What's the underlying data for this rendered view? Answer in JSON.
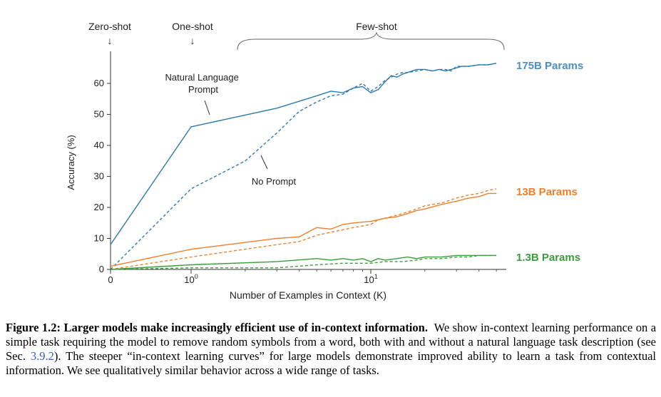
{
  "chart_data": {
    "type": "line",
    "xlabel": "Number of Examples in Context (K)",
    "ylabel": "Accuracy (%)",
    "xscale": "log (with 0 shown at left)",
    "xlim": [
      0,
      50
    ],
    "ylim": [
      0,
      70
    ],
    "yticks": [
      "0",
      "10",
      "20",
      "30",
      "40",
      "50",
      "60"
    ],
    "xticks": [
      {
        "value": 0,
        "base": "0",
        "exp": ""
      },
      {
        "value": 1,
        "base": "10",
        "exp": "0"
      },
      {
        "value": 10,
        "base": "10",
        "exp": "1"
      }
    ],
    "grid": false,
    "regions": [
      {
        "label": "Zero-shot",
        "arrow": "↓"
      },
      {
        "label": "One-shot",
        "arrow": "↓"
      },
      {
        "label": "Few-shot"
      }
    ],
    "annotations": [
      {
        "text": "Natural Language\nPrompt"
      },
      {
        "text": "No Prompt"
      }
    ],
    "series": [
      {
        "name": "175B Params",
        "style": "solid",
        "color": "#2d7bb0",
        "x": [
          0,
          1,
          3,
          5,
          6,
          7,
          8,
          9,
          10,
          11,
          12,
          13,
          14,
          15,
          16,
          18,
          20,
          22,
          24,
          26,
          28,
          30,
          32,
          35,
          40,
          45,
          50
        ],
        "y": [
          8,
          46,
          52,
          56,
          57.5,
          57,
          58.5,
          59,
          57,
          58,
          60.5,
          62.5,
          62,
          63,
          63.5,
          64.5,
          64.5,
          64,
          64.5,
          64,
          64.5,
          65,
          65.5,
          65.5,
          66,
          66,
          66.5
        ]
      },
      {
        "name": "175B Params",
        "style": "dashed",
        "color": "#2d7bb0",
        "x": [
          0,
          1,
          2,
          3,
          4,
          5,
          6,
          7,
          8,
          9,
          10,
          11,
          12,
          13,
          14,
          15,
          16,
          18,
          20,
          22,
          24,
          26,
          28,
          30,
          32,
          35,
          40,
          45,
          50
        ],
        "y": [
          0,
          26,
          35,
          44,
          51,
          54,
          56,
          56.5,
          58.5,
          60,
          57.5,
          59,
          61,
          62,
          63,
          63.5,
          63.5,
          64,
          64.5,
          64,
          64.5,
          64.5,
          64,
          65.5,
          65.5,
          65.5,
          66,
          66,
          66.5
        ]
      },
      {
        "name": "13B Params",
        "style": "solid",
        "color": "#f07f2a",
        "x": [
          0,
          1,
          3,
          4,
          5,
          6,
          7,
          8,
          10,
          12,
          14,
          16,
          18,
          20,
          25,
          30,
          35,
          40,
          45,
          50
        ],
        "y": [
          1,
          6.5,
          10,
          10.5,
          13.5,
          13,
          14.5,
          15,
          15.5,
          16.5,
          17,
          18,
          19,
          19.5,
          21,
          22,
          23,
          23.5,
          24.5,
          24.5
        ]
      },
      {
        "name": "13B Params",
        "style": "dashed",
        "color": "#f07f2a",
        "x": [
          0,
          1,
          3,
          4,
          5,
          6,
          8,
          10,
          11,
          12,
          14,
          16,
          18,
          20,
          25,
          30,
          35,
          40,
          45,
          50
        ],
        "y": [
          0,
          4,
          8,
          9,
          11,
          12,
          13.5,
          14.5,
          16,
          16.5,
          17.5,
          18.5,
          19.5,
          20.5,
          21.5,
          23,
          24,
          24.5,
          25.5,
          26
        ]
      },
      {
        "name": "1.3B Params",
        "style": "solid",
        "color": "#3c9c3c",
        "x": [
          0,
          1,
          3,
          5,
          6,
          7,
          8,
          9,
          10,
          11,
          12,
          14,
          16,
          18,
          20,
          25,
          30,
          35,
          40,
          45,
          50
        ],
        "y": [
          0,
          1.5,
          2.5,
          3.5,
          3,
          3.5,
          3,
          3.5,
          2.5,
          3.5,
          3,
          3.5,
          4,
          3.5,
          4,
          4,
          4.5,
          4.5,
          4.5,
          4.5,
          4.5
        ]
      },
      {
        "name": "1.3B Params",
        "style": "dashed",
        "color": "#3c9c3c",
        "x": [
          0,
          1,
          3,
          5,
          7,
          10,
          12,
          15,
          18,
          20,
          25,
          30,
          35,
          40,
          45,
          50
        ],
        "y": [
          0,
          0.5,
          0.5,
          1.5,
          2,
          2,
          2.5,
          2.5,
          3,
          3.5,
          3.5,
          4,
          4,
          4.5,
          4.5,
          4.5
        ]
      }
    ],
    "series_labels": [
      {
        "text": "175B Params",
        "color": "#4a90c4"
      },
      {
        "text": "13B Params",
        "color": "#f07f2a"
      },
      {
        "text": "1.3B Params",
        "color": "#3c9c3c"
      }
    ]
  },
  "caption": {
    "label": "Figure 1.2:",
    "title": "Larger models make increasingly efficient use of in-context information.",
    "text_before_ref": "We show in-context learning performance on a simple task requiring the model to remove random symbols from a word, both with and without a natural language task description (see Sec.",
    "ref": "3.9.2",
    "text_after_ref": "). The steeper “in-context learning curves” for large models demonstrate improved ability to learn a task from contextual information. We see qualitatively similar behavior across a wide range of tasks."
  }
}
